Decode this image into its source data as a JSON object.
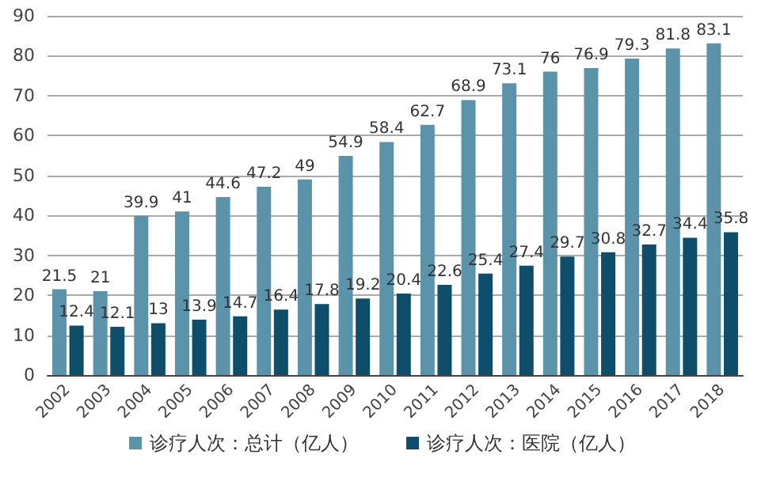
{
  "chart_data": {
    "type": "bar",
    "categories": [
      "2002",
      "2003",
      "2004",
      "2005",
      "2006",
      "2007",
      "2008",
      "2009",
      "2010",
      "2011",
      "2012",
      "2013",
      "2014",
      "2015",
      "2016",
      "2017",
      "2018"
    ],
    "series": [
      {
        "name": "诊疗人次：总计（亿人）",
        "color": "#5b93ab",
        "values": [
          21.5,
          21,
          39.9,
          41,
          44.6,
          47.2,
          49,
          54.9,
          58.4,
          62.7,
          68.9,
          73.1,
          76,
          76.9,
          79.3,
          81.8,
          83.1
        ]
      },
      {
        "name": "诊疗人次：医院（亿人）",
        "color": "#0f4e6b",
        "values": [
          12.4,
          12.1,
          13,
          13.9,
          14.7,
          16.4,
          17.8,
          19.2,
          20.4,
          22.6,
          25.4,
          27.4,
          29.7,
          30.8,
          32.7,
          34.4,
          35.8
        ]
      }
    ],
    "ylim": [
      0,
      90
    ],
    "yticks": [
      0,
      10,
      20,
      30,
      40,
      50,
      60,
      70,
      80,
      90
    ],
    "grid": "y",
    "legend": "bottom",
    "data_labels": true
  }
}
